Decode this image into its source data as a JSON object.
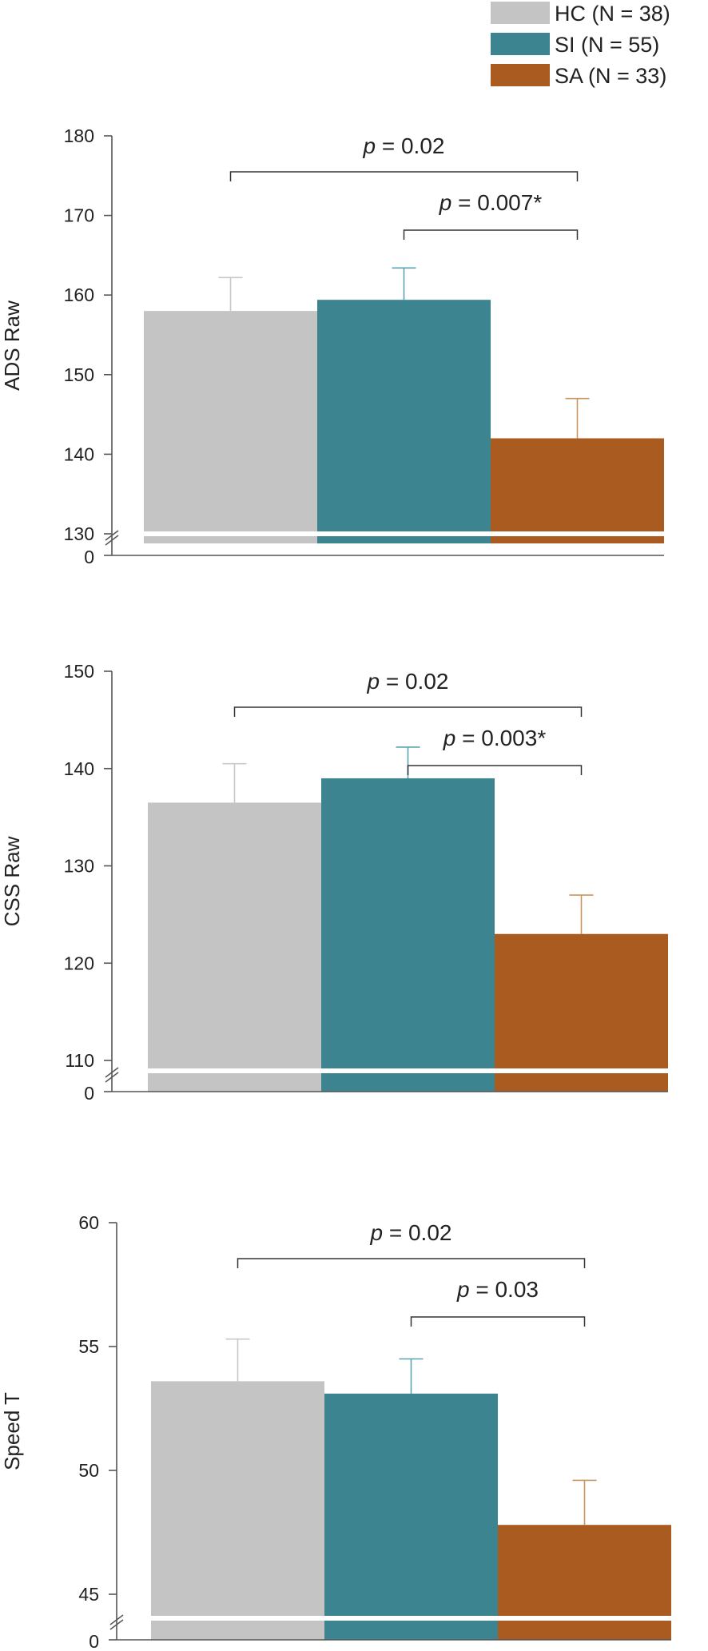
{
  "legend": [
    {
      "label": "HC (N = 38)",
      "color": "#c4c4c4"
    },
    {
      "label": "SI (N = 55)",
      "color": "#3c8590"
    },
    {
      "label": "SA (N = 33)",
      "color": "#aa5c20"
    }
  ],
  "colors": {
    "HC": "#c4c4c4",
    "SI": "#3c8590",
    "SA": "#aa5c20",
    "err_HC": "#c8c8c8",
    "err_SI": "#5aa3ad",
    "err_SA": "#c9955e"
  },
  "chart_data": [
    {
      "type": "bar",
      "title": "",
      "ylabel": "ADS Raw",
      "xlabel": "",
      "categories": [
        "HC",
        "SI",
        "SA"
      ],
      "values": [
        158,
        159.4,
        142
      ],
      "error": [
        4.2,
        4,
        5
      ],
      "ylim": [
        130,
        180
      ],
      "yticks": [
        130,
        140,
        150,
        160,
        170,
        180
      ],
      "axis_break": true,
      "zero_label": "0",
      "comparisons": [
        {
          "p_label": "p",
          "text": " = 0.02",
          "from": "HC",
          "to": "SA"
        },
        {
          "p_label": "p",
          "text": " = 0.007*",
          "from": "SI",
          "to": "SA"
        }
      ]
    },
    {
      "type": "bar",
      "title": "",
      "ylabel": "CSS Raw",
      "xlabel": "",
      "categories": [
        "HC",
        "SI",
        "SA"
      ],
      "values": [
        136.5,
        139,
        123
      ],
      "error": [
        4,
        3.2,
        4
      ],
      "ylim": [
        110,
        155
      ],
      "yticks": [
        110,
        120,
        130,
        140,
        150
      ],
      "axis_break": true,
      "zero_label": "0",
      "comparisons": [
        {
          "p_label": "p",
          "text": " = 0.02",
          "from": "HC",
          "to": "SA"
        },
        {
          "p_label": "p",
          "text": " = 0.003*",
          "from": "SI",
          "to": "SA"
        }
      ]
    },
    {
      "type": "bar",
      "title": "",
      "ylabel": "Speed T",
      "xlabel": "",
      "categories": [
        "HC",
        "SI",
        "SA"
      ],
      "values": [
        53.6,
        53.1,
        47.8
      ],
      "error": [
        1.7,
        1.4,
        1.8
      ],
      "ylim": [
        45,
        60
      ],
      "yticks": [
        45,
        50,
        55,
        60
      ],
      "axis_break": true,
      "zero_label": "0",
      "comparisons": [
        {
          "p_label": "p",
          "text": " = 0.02",
          "from": "HC",
          "to": "SA"
        },
        {
          "p_label": "p",
          "text": " = 0.03",
          "from": "SI",
          "to": "SA"
        }
      ]
    }
  ]
}
